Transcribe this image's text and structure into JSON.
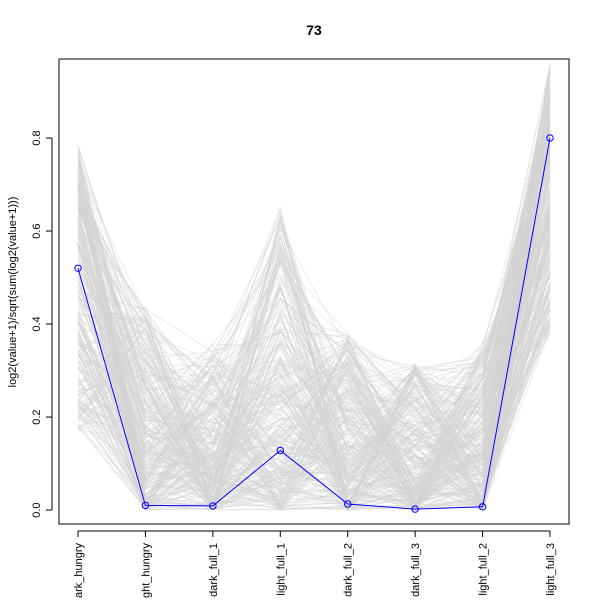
{
  "chart_data": {
    "type": "line",
    "title": "73",
    "xlabel": "",
    "ylabel": "log2(value+1)/sqrt(sum(log2(value+1)))",
    "categories": [
      "dark_hungry",
      "light_hungry",
      "dark_full_1",
      "light_full_1",
      "dark_full_2",
      "dark_full_3",
      "light_full_2",
      "light_full_3"
    ],
    "category_tick_labels": [
      "ark_hungry",
      "ght_hungry",
      "dark_full_1",
      "light_full_1",
      "dark_full_2",
      "dark_full_3",
      "light_full_2",
      "light_full_3"
    ],
    "yticks": [
      0.0,
      0.2,
      0.4,
      0.6,
      0.8
    ],
    "ytick_labels": [
      "0.0",
      "0.2",
      "0.4",
      "0.6",
      "0.8"
    ],
    "ylim": [
      -0.03,
      0.97
    ],
    "grid": false,
    "legend": "none",
    "highlight_series": {
      "values": [
        0.52,
        0.01,
        0.009,
        0.128,
        0.013,
        0.002,
        0.007,
        0.8
      ],
      "color": "#0000ff",
      "marker": "open-circle"
    },
    "background_series": {
      "color": "#d3d3d3",
      "count": 300,
      "ranges": [
        [
          0.17,
          0.79
        ],
        [
          0.0,
          0.44
        ],
        [
          0.0,
          0.36
        ],
        [
          0.0,
          0.65
        ],
        [
          0.0,
          0.38
        ],
        [
          0.0,
          0.32
        ],
        [
          0.0,
          0.36
        ],
        [
          0.38,
          0.96
        ]
      ]
    }
  }
}
